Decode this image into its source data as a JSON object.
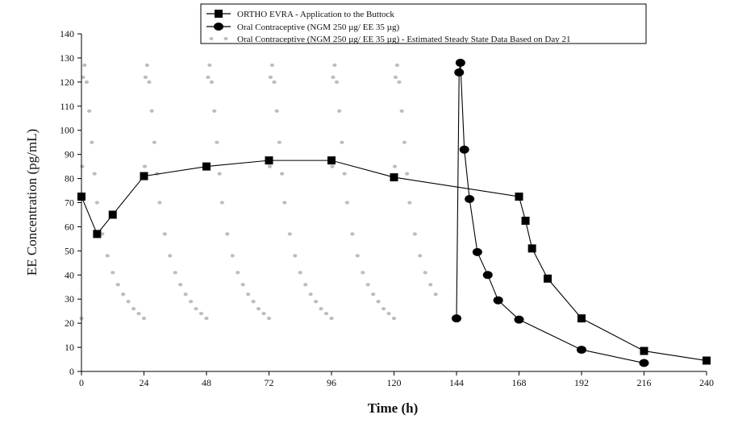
{
  "chart_data": {
    "type": "line",
    "title": "",
    "xlabel": "Time (h)",
    "ylabel": "EE Concentration (pg/mL)",
    "xlim": [
      0,
      240
    ],
    "ylim": [
      0,
      140
    ],
    "xticks": [
      0,
      24,
      48,
      72,
      96,
      120,
      144,
      168,
      192,
      216,
      240
    ],
    "yticks": [
      0,
      10,
      20,
      30,
      40,
      50,
      60,
      70,
      80,
      90,
      100,
      110,
      120,
      130,
      140
    ],
    "grid": false,
    "legend_position": "top",
    "series": [
      {
        "name": "ORTHO EVRA - Application to the Buttock",
        "marker": "square",
        "color": "#000000",
        "x": [
          0,
          6,
          12,
          24,
          48,
          72,
          96,
          120,
          168,
          170.5,
          173,
          179,
          192,
          216,
          240
        ],
        "y": [
          72.5,
          57,
          65,
          81,
          85,
          87.5,
          87.5,
          80.5,
          72.5,
          62.5,
          51,
          38.5,
          22,
          8.5,
          4.5
        ]
      },
      {
        "name": "Oral Contraceptive (NGM 250 µg/ EE 35 µg)",
        "marker": "circle",
        "color": "#000000",
        "x": [
          144,
          145,
          145.5,
          147,
          149,
          152,
          156,
          160,
          168,
          192,
          216
        ],
        "y": [
          22,
          124,
          128,
          92,
          71.5,
          49.5,
          40,
          29.5,
          21.5,
          9,
          3.5
        ]
      },
      {
        "name": "Oral Contraceptive (NGM 250 µg/ EE 35 µg) - Estimated Steady State Data Based on Day 21",
        "marker": "dot",
        "color": "#bdbdbd",
        "x": [
          0,
          0.3,
          0.6,
          1.2,
          2,
          3,
          4,
          5,
          6,
          8,
          10,
          12,
          14,
          16,
          18,
          20,
          22,
          24,
          24.3,
          24.6,
          25.2,
          26,
          27,
          28,
          29,
          30,
          32,
          34,
          36,
          38,
          40,
          42,
          44,
          46,
          48,
          48.3,
          48.6,
          49.2,
          50,
          51,
          52,
          53,
          54,
          56,
          58,
          60,
          62,
          64,
          66,
          68,
          70,
          72,
          72.3,
          72.6,
          73.2,
          74,
          75,
          76,
          77,
          78,
          80,
          82,
          84,
          86,
          88,
          90,
          92,
          94,
          96,
          96.3,
          96.6,
          97.2,
          98,
          99,
          100,
          101,
          102,
          104,
          106,
          108,
          110,
          112,
          114,
          116,
          118,
          120,
          120.3,
          120.6,
          121.2,
          122,
          123,
          124,
          125,
          126,
          128,
          130,
          132,
          134,
          136
        ],
        "y": [
          22,
          85,
          122,
          127,
          120,
          108,
          95,
          82,
          70,
          57,
          48,
          41,
          36,
          32,
          29,
          26,
          24,
          22,
          85,
          122,
          127,
          120,
          108,
          95,
          82,
          70,
          57,
          48,
          41,
          36,
          32,
          29,
          26,
          24,
          22,
          85,
          122,
          127,
          120,
          108,
          95,
          82,
          70,
          57,
          48,
          41,
          36,
          32,
          29,
          26,
          24,
          22,
          85,
          122,
          127,
          120,
          108,
          95,
          82,
          70,
          57,
          48,
          41,
          36,
          32,
          29,
          26,
          24,
          22,
          85,
          122,
          127,
          120,
          108,
          95,
          82,
          70,
          57,
          48,
          41,
          36,
          32,
          29,
          26,
          24,
          22,
          85,
          122,
          127,
          120,
          108,
          95,
          82,
          70,
          57,
          48,
          41,
          36,
          32
        ]
      }
    ]
  }
}
